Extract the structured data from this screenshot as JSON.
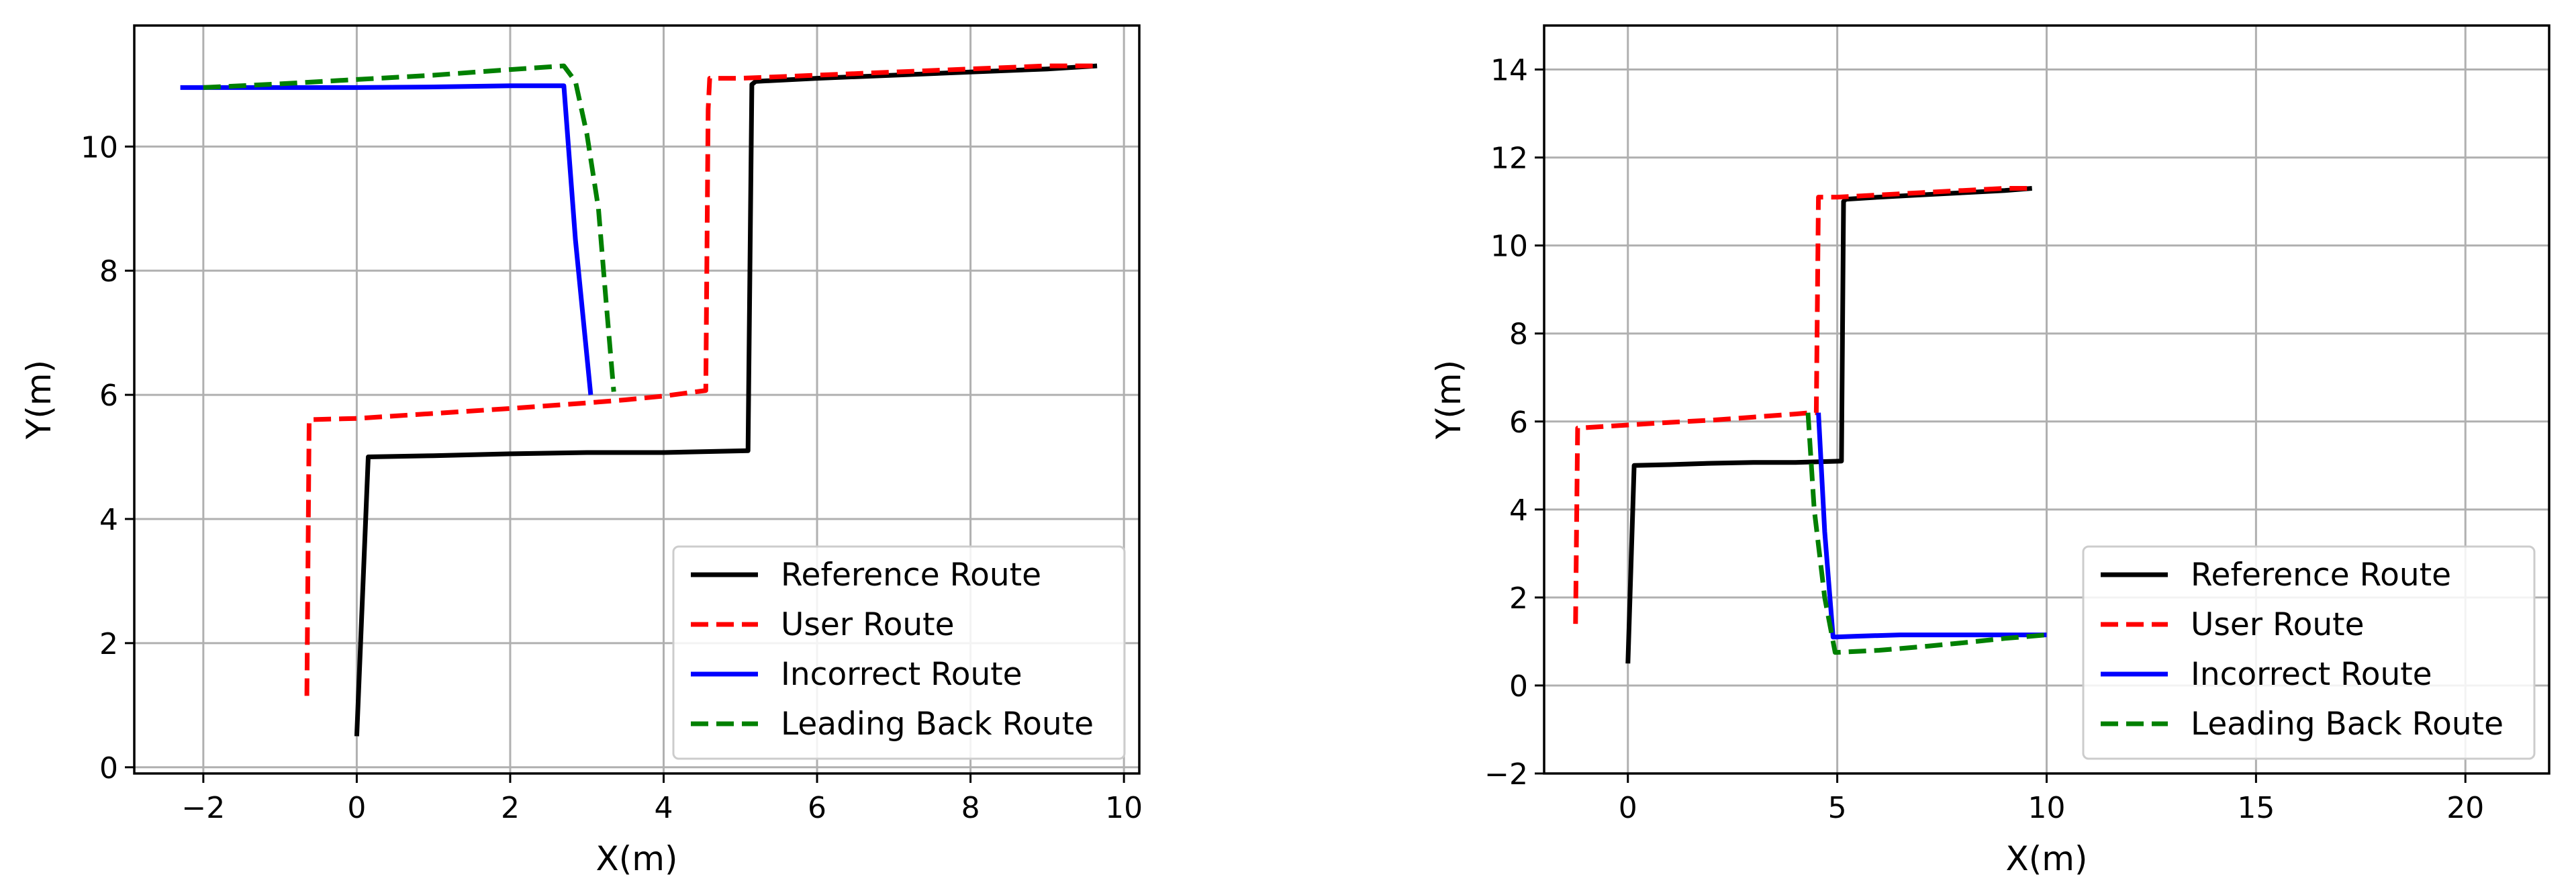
{
  "chart_data": [
    {
      "type": "line",
      "xlabel": "X(m)",
      "ylabel": "Y(m)",
      "xlim": [
        -2.9,
        10.2
      ],
      "ylim": [
        -0.1,
        11.95
      ],
      "xticks": [
        -2,
        0,
        2,
        4,
        6,
        8,
        10
      ],
      "yticks": [
        0,
        2,
        4,
        6,
        8,
        10
      ],
      "xtick_labels": [
        "−2",
        "0",
        "2",
        "4",
        "6",
        "8",
        "10"
      ],
      "ytick_labels": [
        "0",
        "2",
        "4",
        "6",
        "8",
        "10"
      ],
      "grid": true,
      "legend_position": "lower-right",
      "series": [
        {
          "name": "Reference  Route",
          "color": "#000000",
          "dash": "solid",
          "x": [
            0.0,
            0.15,
            1.0,
            2.0,
            3.0,
            4.0,
            5.1,
            5.15,
            5.2,
            6.0,
            7.0,
            8.0,
            9.0,
            9.65
          ],
          "y": [
            0.5,
            5.0,
            5.02,
            5.05,
            5.07,
            5.07,
            5.1,
            11.0,
            11.05,
            11.1,
            11.15,
            11.2,
            11.25,
            11.3
          ]
        },
        {
          "name": "User Route",
          "color": "#ff0000",
          "dash": "dashed",
          "x": [
            -0.65,
            -0.62,
            0.0,
            1.0,
            2.0,
            3.0,
            3.5,
            4.0,
            4.55,
            4.58,
            4.6,
            5.0,
            6.0,
            7.0,
            8.0,
            9.0,
            9.65
          ],
          "y": [
            1.15,
            5.6,
            5.62,
            5.7,
            5.78,
            5.87,
            5.92,
            5.98,
            6.07,
            10.6,
            11.1,
            11.1,
            11.15,
            11.2,
            11.25,
            11.3,
            11.3
          ]
        },
        {
          "name": "Incorrect Route",
          "color": "#0000ff",
          "dash": "solid",
          "x": [
            -2.3,
            -1.0,
            0.0,
            1.0,
            2.0,
            2.7,
            2.85,
            3.05
          ],
          "y": [
            10.95,
            10.95,
            10.95,
            10.96,
            10.98,
            10.98,
            8.5,
            6.0
          ]
        },
        {
          "name": "Leading Back Route",
          "color": "#008000",
          "dash": "dashed",
          "x": [
            -2.0,
            -1.0,
            0.0,
            1.0,
            2.0,
            2.7,
            2.85,
            3.0,
            3.15,
            3.25,
            3.35
          ],
          "y": [
            10.95,
            11.01,
            11.08,
            11.15,
            11.24,
            11.3,
            11.05,
            10.2,
            9.0,
            7.5,
            6.05
          ]
        }
      ]
    },
    {
      "type": "line",
      "xlabel": "X(m)",
      "ylabel": "Y(m)",
      "xlim": [
        -2.0,
        22.0
      ],
      "ylim": [
        -2.0,
        15.0
      ],
      "xticks": [
        0,
        5,
        10,
        15,
        20
      ],
      "yticks": [
        -2,
        0,
        2,
        4,
        6,
        8,
        10,
        12,
        14
      ],
      "xtick_labels": [
        "0",
        "5",
        "10",
        "15",
        "20"
      ],
      "ytick_labels": [
        "−2",
        "0",
        "2",
        "4",
        "6",
        "8",
        "10",
        "12",
        "14"
      ],
      "grid": true,
      "legend_position": "lower-right",
      "series": [
        {
          "name": "Reference  Route",
          "color": "#000000",
          "dash": "solid",
          "x": [
            0.0,
            0.15,
            1.0,
            2.0,
            3.0,
            4.0,
            5.1,
            5.15,
            5.2,
            6.0,
            7.0,
            8.0,
            9.0,
            9.65
          ],
          "y": [
            0.5,
            5.0,
            5.02,
            5.05,
            5.07,
            5.07,
            5.1,
            11.0,
            11.05,
            11.1,
            11.15,
            11.2,
            11.25,
            11.3
          ]
        },
        {
          "name": "User Route",
          "color": "#ff0000",
          "dash": "dashed",
          "x": [
            -1.25,
            -1.2,
            0.0,
            1.0,
            2.0,
            3.0,
            4.0,
            4.35,
            4.5,
            4.55,
            5.0,
            6.0,
            7.0,
            8.0,
            9.0,
            9.65
          ],
          "y": [
            1.4,
            5.85,
            5.92,
            5.98,
            6.03,
            6.1,
            6.17,
            6.2,
            6.2,
            11.1,
            11.1,
            11.15,
            11.2,
            11.25,
            11.3,
            11.3
          ]
        },
        {
          "name": "Incorrect Route",
          "color": "#0000ff",
          "dash": "solid",
          "x": [
            4.55,
            4.7,
            4.9,
            5.5,
            6.5,
            7.5,
            8.5,
            9.5,
            10.0
          ],
          "y": [
            6.2,
            3.5,
            1.1,
            1.12,
            1.15,
            1.15,
            1.15,
            1.15,
            1.15
          ]
        },
        {
          "name": "Leading Back Route",
          "color": "#008000",
          "dash": "dashed",
          "x": [
            4.3,
            4.45,
            4.7,
            4.95,
            6.0,
            7.0,
            8.0,
            9.0,
            10.0
          ],
          "y": [
            6.2,
            4.0,
            2.0,
            0.75,
            0.8,
            0.88,
            0.97,
            1.07,
            1.15
          ]
        }
      ]
    }
  ]
}
